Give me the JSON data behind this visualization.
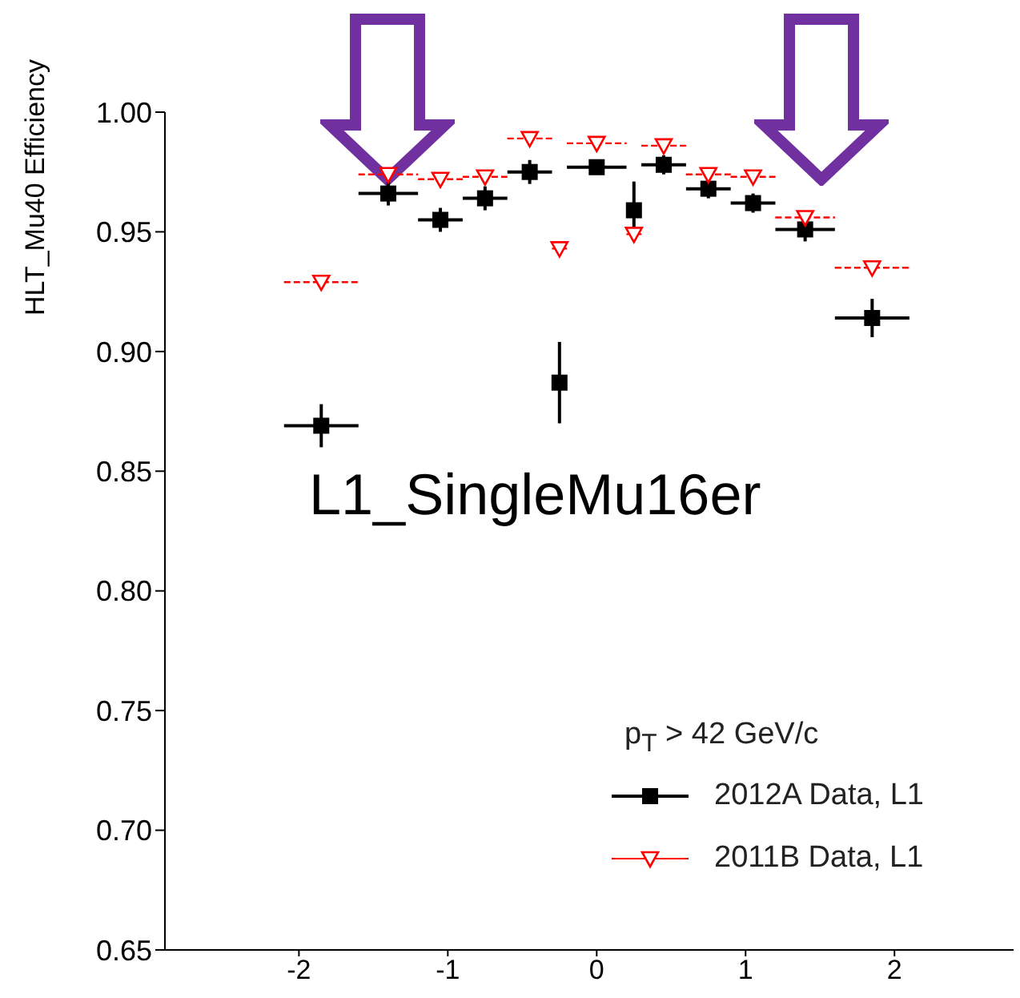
{
  "chart_data": {
    "type": "scatter",
    "ylabel": "HLT_Mu40 Efficiency",
    "legend_title": "p$_{T}$ > 42 GeV/c",
    "annotations": [
      "L1_SingleMu16er"
    ],
    "x": [
      -1.85,
      -1.4,
      -1.05,
      -0.75,
      -0.45,
      -0.25,
      0,
      0.25,
      0.45,
      0.75,
      1.05,
      1.4,
      1.85
    ],
    "series": [
      {
        "name": "2012A Data, L1",
        "color": "#000000",
        "marker": "square",
        "values": [
          0.869,
          0.966,
          0.955,
          0.964,
          0.975,
          0.887,
          0.977,
          0.959,
          0.978,
          0.968,
          0.962,
          0.951,
          0.914
        ],
        "errors": [
          0.009,
          0.005,
          0.005,
          0.005,
          0.005,
          0.017,
          0.003,
          0.012,
          0.004,
          0.004,
          0.004,
          0.005,
          0.008
        ],
        "xerrors": [
          0.25,
          0.2,
          0.15,
          0.15,
          0.15,
          0.05,
          0.2,
          0.05,
          0.15,
          0.15,
          0.15,
          0.2,
          0.25
        ]
      },
      {
        "name": "2011B Data, L1",
        "color": "#ff0000",
        "marker": "triangle",
        "line_style": "dashed",
        "values": [
          0.929,
          0.974,
          0.972,
          0.973,
          0.989,
          0.943,
          0.987,
          0.949,
          0.986,
          0.974,
          0.973,
          0.956,
          0.935
        ],
        "xerrors": [
          0.25,
          0.2,
          0.15,
          0.15,
          0.15,
          0.05,
          0.2,
          0.05,
          0.15,
          0.15,
          0.15,
          0.2,
          0.25
        ]
      }
    ],
    "xlim": [
      -2.9,
      2.8
    ],
    "xticks": [
      -2,
      -1,
      0,
      1,
      2
    ],
    "ylim": [
      0.65,
      1.0
    ],
    "yticks": [
      {
        "value": 0.65,
        "label": "0.65"
      },
      {
        "value": 0.7,
        "label": "0.70"
      },
      {
        "value": 0.75,
        "label": "0.75"
      },
      {
        "value": 0.8,
        "label": "0.80"
      },
      {
        "value": 0.85,
        "label": "0.85"
      },
      {
        "value": 0.9,
        "label": "0.90"
      },
      {
        "value": 0.95,
        "label": "0.95"
      },
      {
        "value": 1.0,
        "label": "1.00"
      }
    ],
    "grid": false,
    "legend": "bottom right"
  }
}
